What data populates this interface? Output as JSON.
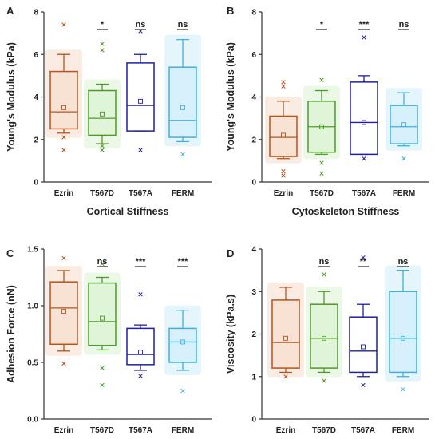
{
  "chart_data": [
    {
      "type": "box",
      "panel_label": "A",
      "ylabel": "Young's Modulus (kPa)",
      "xlabel": "Cortical Stiffness",
      "xlabel_bold": true,
      "categories": [
        "Ezrin",
        "T567D",
        "T567A",
        "FERM"
      ],
      "ylim": [
        0,
        8
      ],
      "yticks": [
        0,
        2,
        4,
        6,
        8
      ],
      "ytick_labels": [
        "0",
        "2",
        "4",
        "6",
        "8"
      ],
      "boxes": [
        {
          "whisker_low": 2.3,
          "q1": 2.5,
          "median": 3.3,
          "q3": 5.2,
          "whisker_high": 6.0,
          "mean": 3.5,
          "outliers": [
            7.4,
            2.1,
            1.5
          ]
        },
        {
          "whisker_low": 1.8,
          "q1": 2.2,
          "median": 3.0,
          "q3": 4.3,
          "whisker_high": 4.6,
          "mean": 3.2,
          "outliers": [
            6.5,
            6.2,
            1.7,
            1.5
          ]
        },
        {
          "whisker_low": 2.4,
          "q1": 2.4,
          "median": 3.6,
          "q3": 5.6,
          "whisker_high": 6.0,
          "mean": 3.8,
          "outliers": [
            7.1,
            1.5
          ]
        },
        {
          "whisker_low": 1.9,
          "q1": 2.1,
          "median": 2.9,
          "q3": 5.4,
          "whisker_high": 6.7,
          "mean": 3.5,
          "outliers": [
            1.3
          ]
        }
      ],
      "significance": [
        "",
        "*",
        "ns",
        "ns"
      ]
    },
    {
      "type": "box",
      "panel_label": "B",
      "ylabel": "Young's Modulus (kPa)",
      "xlabel": "Cytoskeleton Stiffness",
      "xlabel_bold": false,
      "categories": [
        "Ezrin",
        "T567D",
        "T567A",
        "FERM"
      ],
      "ylim": [
        0,
        8
      ],
      "yticks": [
        0,
        2,
        4,
        6,
        8
      ],
      "ytick_labels": [
        "0",
        "2",
        "4",
        "6",
        "8"
      ],
      "boxes": [
        {
          "whisker_low": 1.1,
          "q1": 1.2,
          "median": 2.1,
          "q3": 3.1,
          "whisker_high": 3.8,
          "mean": 2.2,
          "outliers": [
            4.7,
            4.5,
            0.5,
            0.3
          ]
        },
        {
          "whisker_low": 1.3,
          "q1": 1.4,
          "median": 2.6,
          "q3": 3.8,
          "whisker_high": 4.3,
          "mean": 2.6,
          "outliers": [
            4.8,
            0.9,
            0.4
          ]
        },
        {
          "whisker_low": 1.3,
          "q1": 1.3,
          "median": 2.8,
          "q3": 4.7,
          "whisker_high": 5.0,
          "mean": 2.8,
          "outliers": [
            6.8,
            1.1
          ]
        },
        {
          "whisker_low": 1.7,
          "q1": 1.8,
          "median": 2.6,
          "q3": 3.6,
          "whisker_high": 4.2,
          "mean": 2.7,
          "outliers": [
            1.1
          ]
        }
      ],
      "significance": [
        "",
        "*",
        "***",
        "ns"
      ]
    },
    {
      "type": "box",
      "panel_label": "C",
      "ylabel": "Adhesion Force (nN)",
      "xlabel": "",
      "categories": [
        "Ezrin",
        "T567D",
        "T567A",
        "FERM"
      ],
      "ylim": [
        0,
        1.5
      ],
      "yticks": [
        0,
        0.5,
        1.0,
        1.5
      ],
      "ytick_labels": [
        "0.0",
        "0.5",
        "1.0",
        "1.5"
      ],
      "boxes": [
        {
          "whisker_low": 0.6,
          "q1": 0.66,
          "median": 0.98,
          "q3": 1.21,
          "whisker_high": 1.31,
          "mean": 0.95,
          "outliers": [
            1.42,
            0.49
          ]
        },
        {
          "whisker_low": 0.61,
          "q1": 0.65,
          "median": 0.86,
          "q3": 1.2,
          "whisker_high": 1.25,
          "mean": 0.89,
          "outliers": [
            1.37,
            0.45,
            0.3
          ]
        },
        {
          "whisker_low": 0.43,
          "q1": 0.48,
          "median": 0.57,
          "q3": 0.8,
          "whisker_high": 0.83,
          "mean": 0.59,
          "outliers": [
            1.1,
            0.38
          ]
        },
        {
          "whisker_low": 0.43,
          "q1": 0.5,
          "median": 0.68,
          "q3": 0.8,
          "whisker_high": 0.96,
          "mean": 0.68,
          "outliers": [
            0.25
          ]
        }
      ],
      "significance": [
        "",
        "ns",
        "***",
        "***"
      ]
    },
    {
      "type": "box",
      "panel_label": "D",
      "ylabel": "Viscosity (kPa.s)",
      "xlabel": "",
      "categories": [
        "Ezrin",
        "T567D",
        "T567A",
        "FERM"
      ],
      "ylim": [
        0,
        4
      ],
      "yticks": [
        0,
        1,
        2,
        3,
        4
      ],
      "ytick_labels": [
        "0",
        "1",
        "2",
        "3",
        "4"
      ],
      "boxes": [
        {
          "whisker_low": 1.1,
          "q1": 1.2,
          "median": 1.8,
          "q3": 2.8,
          "whisker_high": 3.1,
          "mean": 1.9,
          "outliers": [
            1.0
          ]
        },
        {
          "whisker_low": 1.1,
          "q1": 1.2,
          "median": 1.9,
          "q3": 2.7,
          "whisker_high": 3.0,
          "mean": 1.9,
          "outliers": [
            3.4,
            0.9
          ]
        },
        {
          "whisker_low": 1.0,
          "q1": 1.1,
          "median": 1.6,
          "q3": 2.4,
          "whisker_high": 2.7,
          "mean": 1.7,
          "outliers": [
            3.8,
            0.8
          ]
        },
        {
          "whisker_low": 1.0,
          "q1": 1.1,
          "median": 1.9,
          "q3": 3.0,
          "whisker_high": 3.5,
          "mean": 1.9,
          "outliers": [
            3.7,
            0.7
          ]
        }
      ],
      "significance": [
        "",
        "ns",
        "**",
        "ns"
      ]
    }
  ],
  "colors": {
    "Ezrin": "#b5541b",
    "T567D": "#4f9a2c",
    "T567A": "#1f1fa0",
    "FERM": "#44aede",
    "Ezrin_fill": "#f5dccb",
    "T567D_fill": "#d9f3cf",
    "T567A_fill": "#ffffff",
    "FERM_fill": "#cdeefa"
  }
}
